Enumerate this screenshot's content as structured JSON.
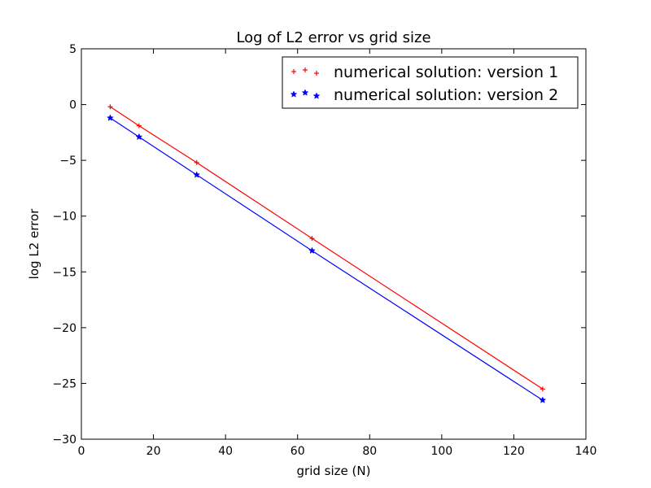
{
  "chart_data": {
    "type": "line",
    "title": "Log of L2 error vs grid size",
    "xlabel": "grid size (N)",
    "ylabel": "log L2 error",
    "xlim": [
      0,
      140
    ],
    "ylim": [
      -30,
      5
    ],
    "xticks": [
      0,
      20,
      40,
      60,
      80,
      100,
      120,
      140
    ],
    "yticks": [
      5,
      0,
      -5,
      -10,
      -15,
      -20,
      -25,
      -30
    ],
    "xtick_labels": [
      "0",
      "20",
      "40",
      "60",
      "80",
      "100",
      "120",
      "140"
    ],
    "ytick_labels": [
      "5",
      "0",
      "−5",
      "−10",
      "−15",
      "−20",
      "−25",
      "−30"
    ],
    "grid": false,
    "legend_position": "top-right",
    "series": [
      {
        "name": "numerical solution: version 1",
        "color": "#ff0000",
        "marker": "plus",
        "x": [
          8,
          16,
          32,
          64,
          128
        ],
        "y": [
          -0.2,
          -1.9,
          -5.2,
          -12.0,
          -25.5
        ]
      },
      {
        "name": "numerical solution: version 2",
        "color": "#0000ff",
        "marker": "star",
        "x": [
          8,
          16,
          32,
          64,
          128
        ],
        "y": [
          -1.2,
          -2.9,
          -6.3,
          -13.1,
          -26.5
        ]
      }
    ]
  }
}
